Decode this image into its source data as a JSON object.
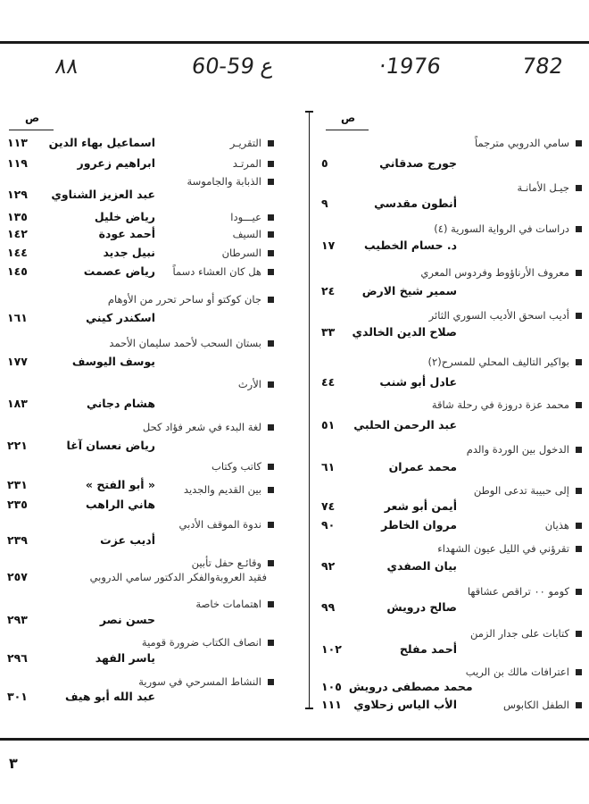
{
  "header": {
    "handwritten": [
      "٨٨",
      "60-59 ع",
      "·1976",
      "782"
    ]
  },
  "page_label": "ص",
  "page_number": "٣",
  "right_column": [
    {
      "title": "سامي الدروبي مترجماً",
      "author": "جورج صدقاني",
      "page": "٥"
    },
    {
      "title": "جيـل الأمانـة",
      "author": "أنطون مقدسي",
      "page": "٩"
    },
    {
      "title": "دراسات في الرواية السورية (٤)",
      "author": "د. حسام الخطيب",
      "page": "١٧"
    },
    {
      "title": "معروف الأرناؤوط وفردوس المعري",
      "author": "سمير شيخ الارض",
      "page": "٢٤"
    },
    {
      "title": "أديب اسحق الأديب السوري الثائر",
      "author": "صلاح الدين الخالدي",
      "page": "٣٣"
    },
    {
      "title": "بواكير التاليف المحلي للمسرح(٢)",
      "author": "عادل أبو شنب",
      "page": "٤٤"
    },
    {
      "title": "محمد عزة دروزة في رحلة شاقة",
      "author": "عبد الرحمن الحلبي",
      "page": "٥١"
    },
    {
      "title": "الدخول بين الوردة والدم",
      "author": "محمد عمران",
      "page": "٦١"
    },
    {
      "title": "إلى حبيبة تدعى الوطن",
      "author": "أيمن أبو شعر",
      "page": "٧٤"
    },
    {
      "title": "هذيان",
      "author": "مروان الخاطر",
      "page": "٩٠"
    },
    {
      "title": "تقرؤني في الليل عيون الشهداء",
      "author": "بيان الصفدي",
      "page": "٩٢"
    },
    {
      "title": "كومو ٠٠ تراقص عشاقها",
      "author": "صالح درويش",
      "page": "٩٩"
    },
    {
      "title": "كتابات على جدار الزمن",
      "author": "أحمد مفلح",
      "page": "١٠٢"
    },
    {
      "title": "اعترافات مالك بن الريب",
      "author": "محمد مصطفى درويش",
      "page": "١٠٥"
    },
    {
      "title": "الطفل الكابوس",
      "author": "الأب الياس زحلاوي",
      "page": "١١١"
    }
  ],
  "left_column": [
    {
      "title": "التقريـر",
      "author": "اسماعيل بهاء الدين",
      "page": "١١٣"
    },
    {
      "title": "المرتـد",
      "author": "ابراهيم زعرور",
      "page": "١١٩"
    },
    {
      "title": "الذبابة والجاموسة",
      "author": "عبد العزيز الشناوي",
      "page": "١٢٩"
    },
    {
      "title": "عيـــودا",
      "author": "رياض خليل",
      "page": "١٣٥"
    },
    {
      "title": "السيف",
      "author": "أحمد عودة",
      "page": "١٤٢"
    },
    {
      "title": "السرطان",
      "author": "نبيل جديد",
      "page": "١٤٤"
    },
    {
      "title": "هل كان العشاء دسماً",
      "author": "رياض عصمت",
      "page": "١٤٥"
    },
    {
      "title": "جان كوكتو أو ساحر تحرر من الأوهام",
      "author": "اسكندر كيني",
      "page": "١٦١"
    },
    {
      "title": "بستان السحب لأحمد سليمان الأحمد",
      "author": "يوسف اليوسف",
      "page": "١٧٧"
    },
    {
      "title": "الأرث",
      "author": "هشام دجاني",
      "page": "١٨٣"
    },
    {
      "title": "لغة البدء في شعر فؤاد كحل",
      "author": "رياض نعسان آغا",
      "page": "٢٢١"
    },
    {
      "title": "كاتب وكتاب",
      "author": "« أبو الفتح »",
      "page": "٢٣١"
    },
    {
      "title": "بين القديم والجديد",
      "author": "هاني الراهب",
      "page": "٢٣٥"
    },
    {
      "title": "ندوة الموقف الأدبي",
      "author": "أديب عزت",
      "page": "٢٣٩"
    },
    {
      "title": "وقائـع حفل تأبين",
      "author": "فقيد العروبةوالفكر الدكتور سامي الدروبي",
      "page": "٢٥٧"
    },
    {
      "title": "اهتمامات خاصة",
      "author": "حسن نصر",
      "page": "٢٩٣"
    },
    {
      "title": "انصاف الكتاب ضرورة قومية",
      "author": "ياسر الفهد",
      "page": "٢٩٦"
    },
    {
      "title": "النشاط المسرحي في سورية",
      "author": "عبد الله أبو هيف",
      "page": "٣٠١"
    }
  ]
}
